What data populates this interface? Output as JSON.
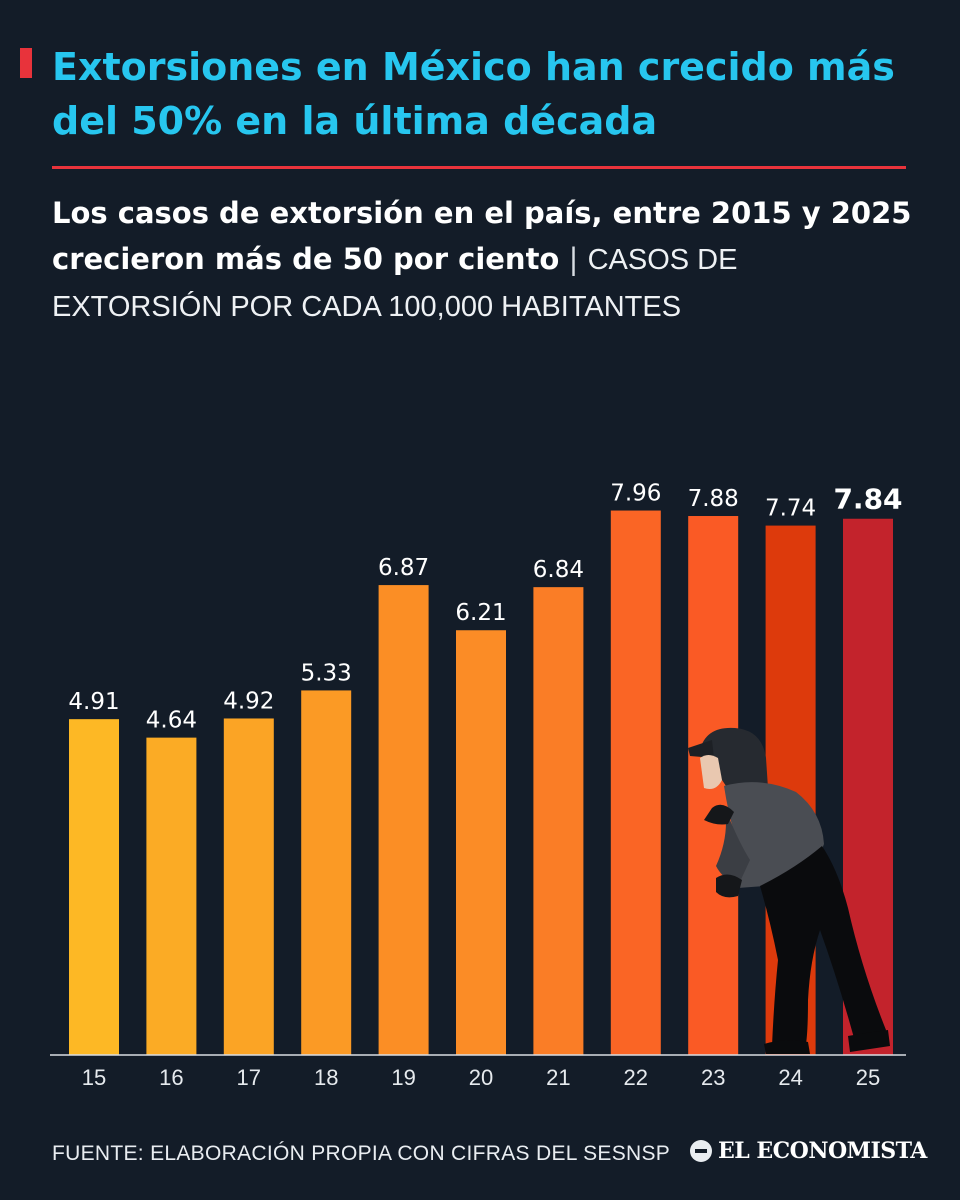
{
  "header": {
    "title": "Extorsiones en México han crecido más del 50% en la última década",
    "subtitle_bold": "Los casos de extorsión en el país, entre 2015 y 2025 crecieron más de 50 por ciento",
    "subtitle_separator": " | ",
    "subtitle_unit": "CASOS DE EXTORSIÓN POR CADA 100,000 HABITANTES"
  },
  "footer": {
    "source": "FUENTE: ELABORACIÓN PROPIA CON CIFRAS DEL SESNSP",
    "logo_text": "EL ECONOMISTA"
  },
  "colors": {
    "background": "#131c28",
    "title": "#27c6ef",
    "accent": "#e8333b",
    "bars": [
      "#fdb825",
      "#fbab25",
      "#fba425",
      "#fb9a25",
      "#fb8e25",
      "#fb8c26",
      "#fa7d26",
      "#fa6525",
      "#fa5a25",
      "#dd3a0c",
      "#c3232c"
    ]
  },
  "figure": {
    "icon": "hooded-figure-icon",
    "description": ""
  },
  "chart_data": {
    "type": "bar",
    "title": "",
    "xlabel": "",
    "ylabel": "",
    "categories": [
      "15",
      "16",
      "17",
      "18",
      "19",
      "20",
      "21",
      "22",
      "23",
      "24",
      "25"
    ],
    "values": [
      4.91,
      4.64,
      4.92,
      5.33,
      6.87,
      6.21,
      6.84,
      7.96,
      7.88,
      7.74,
      7.84
    ],
    "value_labels": [
      "4.91",
      "4.64",
      "4.92",
      "5.33",
      "6.87",
      "6.21",
      "6.84",
      "7.96",
      "7.88",
      "7.74",
      "7.84"
    ],
    "highlight_index": 10,
    "ylim": [
      0,
      8
    ],
    "grid": false,
    "legend": "none"
  }
}
